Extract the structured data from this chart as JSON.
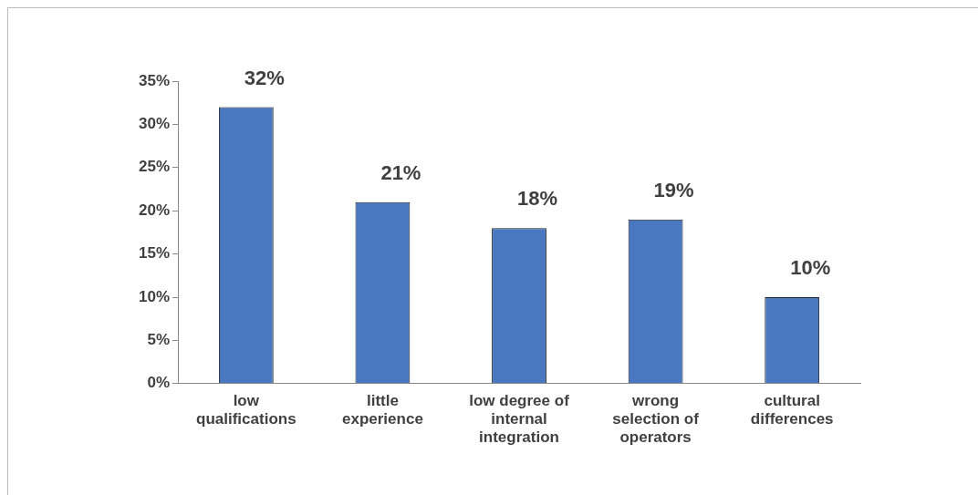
{
  "chart_data": {
    "type": "bar",
    "categories": [
      "low qualifications",
      "little experience",
      "low degree of internal integration",
      "wrong selection of operators",
      "cultural differences"
    ],
    "values": [
      32,
      21,
      18,
      19,
      10
    ],
    "value_labels": [
      "32%",
      "21%",
      "18%",
      "19%",
      "10%"
    ],
    "color": "#4a78c0",
    "ylim": [
      0,
      35
    ],
    "yticks": [
      {
        "value": 0,
        "label": "0%"
      },
      {
        "value": 5,
        "label": "5%"
      },
      {
        "value": 10,
        "label": "10%"
      },
      {
        "value": 15,
        "label": "15%"
      },
      {
        "value": 20,
        "label": "20%"
      },
      {
        "value": 25,
        "label": "25%"
      },
      {
        "value": 30,
        "label": "30%"
      },
      {
        "value": 35,
        "label": "35%"
      }
    ],
    "grid": false,
    "legend": false
  }
}
